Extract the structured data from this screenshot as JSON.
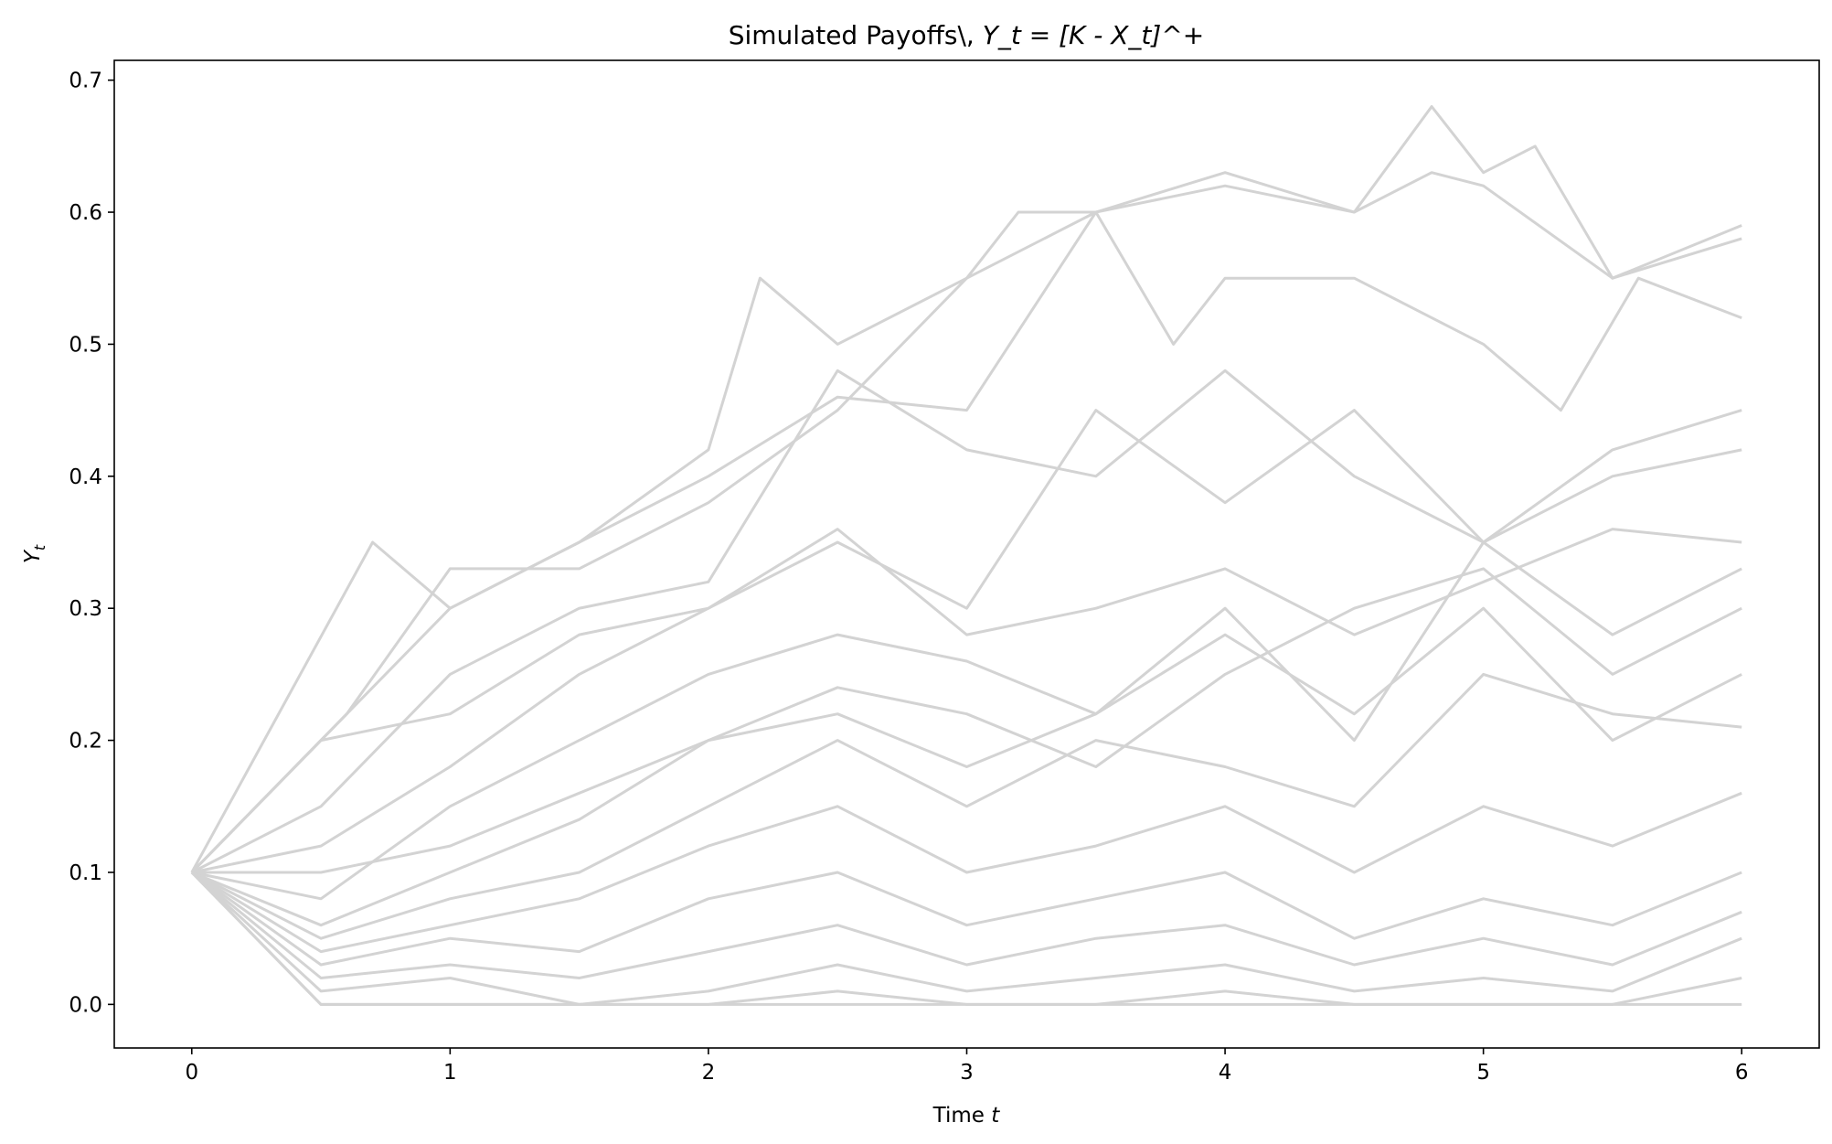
{
  "chart_data": {
    "type": "line",
    "title_prefix": "Simulated Payoffs\\, ",
    "title_math": "Y_t = [K - X_t]^+",
    "xlabel_prefix": "Time ",
    "xlabel_var": "t",
    "ylabel_main": "Y",
    "ylabel_sub": "t",
    "xlim": [
      -0.3,
      6.3
    ],
    "ylim": [
      -0.033,
      0.715
    ],
    "xticks": [
      0,
      1,
      2,
      3,
      4,
      5,
      6
    ],
    "yticks": [
      0.0,
      0.1,
      0.2,
      0.3,
      0.4,
      0.5,
      0.6,
      0.7
    ],
    "ytick_labels": [
      "0.0",
      "0.1",
      "0.2",
      "0.3",
      "0.4",
      "0.5",
      "0.6",
      "0.7"
    ],
    "line_color": "#d3d3d3",
    "grid": false,
    "legend": "none",
    "series": [
      {
        "x": [
          0,
          0.5,
          1,
          1.5,
          2,
          2.2,
          2.5,
          3,
          3.2,
          3.5,
          4,
          4.5,
          4.8,
          5,
          5.5,
          6
        ],
        "y": [
          0.1,
          0.2,
          0.3,
          0.35,
          0.42,
          0.55,
          0.5,
          0.55,
          0.6,
          0.6,
          0.62,
          0.6,
          0.63,
          0.62,
          0.55,
          0.59
        ]
      },
      {
        "x": [
          0,
          0.6,
          1,
          1.5,
          2,
          2.5,
          3,
          3.5,
          4,
          4.5,
          4.8,
          5,
          5.2,
          5.5,
          6
        ],
        "y": [
          0.1,
          0.22,
          0.33,
          0.33,
          0.38,
          0.45,
          0.55,
          0.6,
          0.63,
          0.6,
          0.68,
          0.63,
          0.65,
          0.55,
          0.58
        ]
      },
      {
        "x": [
          0,
          0.7,
          1,
          1.5,
          2,
          2.5,
          3,
          3.5,
          3.8,
          4,
          4.5,
          5,
          5.3,
          5.6,
          6
        ],
        "y": [
          0.1,
          0.35,
          0.3,
          0.35,
          0.4,
          0.46,
          0.45,
          0.6,
          0.5,
          0.55,
          0.55,
          0.5,
          0.45,
          0.55,
          0.52
        ]
      },
      {
        "x": [
          0,
          0.5,
          1,
          1.5,
          2,
          2.5,
          3,
          3.5,
          4,
          4.5,
          5,
          5.5,
          6
        ],
        "y": [
          0.1,
          0.15,
          0.25,
          0.3,
          0.32,
          0.48,
          0.42,
          0.4,
          0.48,
          0.4,
          0.35,
          0.42,
          0.45
        ]
      },
      {
        "x": [
          0,
          0.5,
          1,
          1.5,
          2,
          2.5,
          3,
          3.5,
          4,
          4.5,
          5,
          5.5,
          6
        ],
        "y": [
          0.1,
          0.2,
          0.22,
          0.28,
          0.3,
          0.35,
          0.3,
          0.45,
          0.38,
          0.45,
          0.35,
          0.4,
          0.42
        ]
      },
      {
        "x": [
          0,
          0.5,
          1,
          1.5,
          2,
          2.5,
          3,
          3.5,
          4,
          4.5,
          5,
          5.5,
          6
        ],
        "y": [
          0.1,
          0.12,
          0.18,
          0.25,
          0.3,
          0.36,
          0.28,
          0.3,
          0.33,
          0.28,
          0.32,
          0.36,
          0.35
        ]
      },
      {
        "x": [
          0,
          0.5,
          1,
          1.5,
          2,
          2.5,
          3,
          3.5,
          4,
          4.5,
          5,
          5.5,
          6
        ],
        "y": [
          0.1,
          0.08,
          0.15,
          0.2,
          0.25,
          0.28,
          0.26,
          0.22,
          0.3,
          0.2,
          0.35,
          0.28,
          0.33
        ]
      },
      {
        "x": [
          0,
          0.5,
          1,
          1.5,
          2,
          2.5,
          3,
          3.5,
          4,
          4.5,
          5,
          5.5,
          6
        ],
        "y": [
          0.1,
          0.1,
          0.12,
          0.16,
          0.2,
          0.24,
          0.22,
          0.18,
          0.25,
          0.3,
          0.33,
          0.25,
          0.3
        ]
      },
      {
        "x": [
          0,
          0.5,
          1,
          1.5,
          2,
          2.5,
          3,
          3.5,
          4,
          4.5,
          5,
          5.5,
          6
        ],
        "y": [
          0.1,
          0.06,
          0.1,
          0.14,
          0.2,
          0.22,
          0.18,
          0.22,
          0.28,
          0.22,
          0.3,
          0.2,
          0.25
        ]
      },
      {
        "x": [
          0,
          0.5,
          1,
          1.5,
          2,
          2.5,
          3,
          3.5,
          4,
          4.5,
          5,
          5.5,
          6
        ],
        "y": [
          0.1,
          0.05,
          0.08,
          0.1,
          0.15,
          0.2,
          0.15,
          0.2,
          0.18,
          0.15,
          0.25,
          0.22,
          0.21
        ]
      },
      {
        "x": [
          0,
          0.5,
          1,
          1.5,
          2,
          2.5,
          3,
          3.5,
          4,
          4.5,
          5,
          5.5,
          6
        ],
        "y": [
          0.1,
          0.04,
          0.06,
          0.08,
          0.12,
          0.15,
          0.1,
          0.12,
          0.15,
          0.1,
          0.15,
          0.12,
          0.16
        ]
      },
      {
        "x": [
          0,
          0.5,
          1,
          1.5,
          2,
          2.5,
          3,
          3.5,
          4,
          4.5,
          5,
          5.5,
          6
        ],
        "y": [
          0.1,
          0.03,
          0.05,
          0.04,
          0.08,
          0.1,
          0.06,
          0.08,
          0.1,
          0.05,
          0.08,
          0.06,
          0.1
        ]
      },
      {
        "x": [
          0,
          0.5,
          1,
          1.5,
          2,
          2.5,
          3,
          3.5,
          4,
          4.5,
          5,
          5.5,
          6
        ],
        "y": [
          0.1,
          0.02,
          0.03,
          0.02,
          0.04,
          0.06,
          0.03,
          0.05,
          0.06,
          0.03,
          0.05,
          0.03,
          0.07
        ]
      },
      {
        "x": [
          0,
          0.5,
          1,
          1.5,
          2,
          2.5,
          3,
          3.5,
          4,
          4.5,
          5,
          5.5,
          6
        ],
        "y": [
          0.1,
          0.01,
          0.02,
          0,
          0.01,
          0.03,
          0.01,
          0.02,
          0.03,
          0.01,
          0.02,
          0.01,
          0.05
        ]
      },
      {
        "x": [
          0,
          0.5,
          1,
          1.5,
          2,
          2.5,
          3,
          3.5,
          4,
          4.5,
          5,
          5.5,
          6
        ],
        "y": [
          0.1,
          0,
          0,
          0,
          0,
          0.01,
          0,
          0,
          0.01,
          0,
          0,
          0,
          0.02
        ]
      },
      {
        "x": [
          0,
          0.5,
          1,
          1.5,
          2,
          2.5,
          3,
          3.5,
          4,
          4.5,
          5,
          5.5,
          6
        ],
        "y": [
          0.1,
          0,
          0,
          0,
          0,
          0,
          0,
          0,
          0,
          0,
          0,
          0,
          0
        ]
      }
    ]
  }
}
